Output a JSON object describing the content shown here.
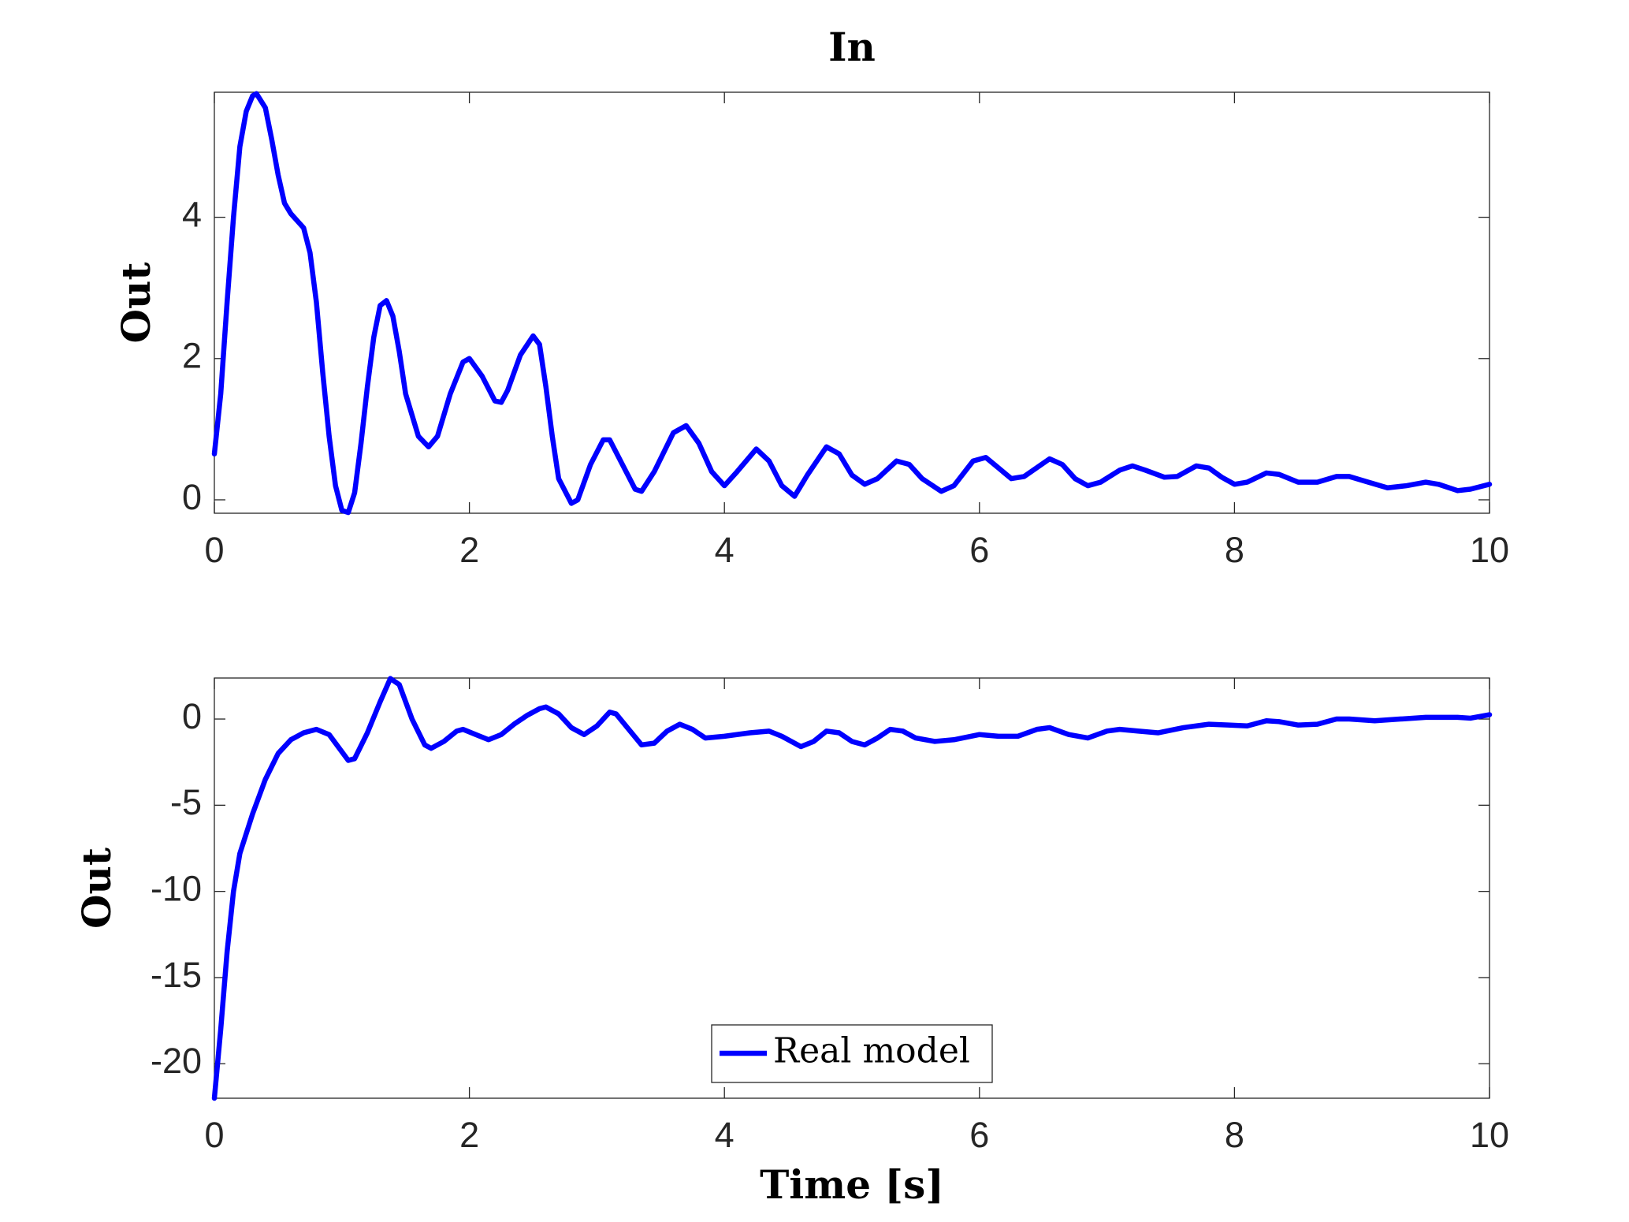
{
  "chart_data": [
    {
      "type": "line",
      "title": "In",
      "y_label": "Out",
      "x": [
        0,
        0.05,
        0.1,
        0.15,
        0.2,
        0.25,
        0.3,
        0.33,
        0.4,
        0.45,
        0.5,
        0.55,
        0.6,
        0.7,
        0.75,
        0.8,
        0.85,
        0.9,
        0.95,
        1.0,
        1.05,
        1.1,
        1.15,
        1.2,
        1.25,
        1.3,
        1.35,
        1.4,
        1.45,
        1.5,
        1.6,
        1.68,
        1.75,
        1.85,
        1.95,
        2.0,
        2.1,
        2.2,
        2.25,
        2.3,
        2.4,
        2.5,
        2.55,
        2.6,
        2.65,
        2.7,
        2.8,
        2.85,
        2.95,
        3.05,
        3.1,
        3.2,
        3.3,
        3.35,
        3.45,
        3.6,
        3.7,
        3.8,
        3.9,
        4.0,
        4.1,
        4.25,
        4.35,
        4.45,
        4.55,
        4.65,
        4.8,
        4.9,
        5.0,
        5.1,
        5.2,
        5.35,
        5.45,
        5.55,
        5.7,
        5.8,
        5.95,
        6.05,
        6.15,
        6.25,
        6.35,
        6.55,
        6.65,
        6.75,
        6.85,
        6.95,
        7.1,
        7.2,
        7.3,
        7.45,
        7.55,
        7.7,
        7.8,
        7.9,
        8.0,
        8.1,
        8.25,
        8.35,
        8.5,
        8.65,
        8.8,
        8.9,
        9.05,
        9.2,
        9.35,
        9.5,
        9.6,
        9.75,
        9.85,
        10
      ],
      "series": [
        {
          "color": "#0000ff",
          "values": [
            0.65,
            1.5,
            2.8,
            4.0,
            5.0,
            5.5,
            5.72,
            5.75,
            5.55,
            5.1,
            4.6,
            4.2,
            4.05,
            3.85,
            3.5,
            2.8,
            1.8,
            0.9,
            0.2,
            -0.15,
            -0.18,
            0.1,
            0.8,
            1.6,
            2.3,
            2.75,
            2.82,
            2.6,
            2.1,
            1.5,
            0.9,
            0.75,
            0.9,
            1.5,
            1.95,
            2.0,
            1.75,
            1.4,
            1.38,
            1.55,
            2.05,
            2.32,
            2.2,
            1.6,
            0.9,
            0.3,
            -0.05,
            0.0,
            0.5,
            0.85,
            0.85,
            0.5,
            0.15,
            0.12,
            0.4,
            0.95,
            1.05,
            0.8,
            0.4,
            0.2,
            0.4,
            0.72,
            0.55,
            0.2,
            0.05,
            0.35,
            0.75,
            0.65,
            0.35,
            0.22,
            0.3,
            0.55,
            0.5,
            0.3,
            0.12,
            0.2,
            0.55,
            0.6,
            0.45,
            0.3,
            0.33,
            0.58,
            0.5,
            0.3,
            0.2,
            0.25,
            0.42,
            0.48,
            0.42,
            0.32,
            0.33,
            0.48,
            0.45,
            0.32,
            0.22,
            0.25,
            0.38,
            0.36,
            0.25,
            0.25,
            0.33,
            0.33,
            0.25,
            0.17,
            0.2,
            0.25,
            0.22,
            0.13,
            0.15,
            0.22
          ]
        }
      ],
      "xlim": [
        0,
        10
      ],
      "xticks": [
        0,
        2,
        4,
        6,
        8,
        10
      ],
      "ylim": [
        -0.19,
        5.77
      ],
      "yticks": [
        0,
        2,
        4
      ],
      "grid": false
    },
    {
      "type": "line",
      "y_label": "Out",
      "x_label": "Time [s]",
      "x": [
        0,
        0.05,
        0.1,
        0.15,
        0.2,
        0.3,
        0.4,
        0.5,
        0.6,
        0.7,
        0.8,
        0.9,
        1.0,
        1.05,
        1.1,
        1.2,
        1.3,
        1.38,
        1.45,
        1.55,
        1.65,
        1.7,
        1.8,
        1.9,
        1.95,
        2.05,
        2.15,
        2.25,
        2.35,
        2.45,
        2.55,
        2.6,
        2.7,
        2.8,
        2.9,
        3.0,
        3.1,
        3.15,
        3.25,
        3.35,
        3.45,
        3.55,
        3.65,
        3.75,
        3.85,
        4.0,
        4.2,
        4.35,
        4.45,
        4.6,
        4.7,
        4.8,
        4.9,
        5.0,
        5.1,
        5.2,
        5.3,
        5.4,
        5.5,
        5.65,
        5.8,
        6.0,
        6.15,
        6.3,
        6.45,
        6.55,
        6.7,
        6.85,
        7.0,
        7.1,
        7.25,
        7.4,
        7.6,
        7.8,
        7.95,
        8.1,
        8.25,
        8.35,
        8.5,
        8.65,
        8.8,
        8.9,
        9.1,
        9.3,
        9.5,
        9.75,
        9.85,
        10
      ],
      "series": [
        {
          "name": "Real model",
          "color": "#0000ff",
          "values": [
            -22,
            -18,
            -13.5,
            -10,
            -7.8,
            -5.5,
            -3.5,
            -2,
            -1.2,
            -0.8,
            -0.6,
            -0.9,
            -1.9,
            -2.4,
            -2.3,
            -0.8,
            1.0,
            2.35,
            2.0,
            0.0,
            -1.5,
            -1.7,
            -1.3,
            -0.7,
            -0.6,
            -0.9,
            -1.2,
            -0.9,
            -0.3,
            0.2,
            0.6,
            0.7,
            0.3,
            -0.5,
            -0.9,
            -0.4,
            0.4,
            0.3,
            -0.6,
            -1.5,
            -1.4,
            -0.7,
            -0.3,
            -0.6,
            -1.1,
            -1.0,
            -0.8,
            -0.7,
            -1.0,
            -1.6,
            -1.3,
            -0.7,
            -0.8,
            -1.3,
            -1.5,
            -1.1,
            -0.6,
            -0.7,
            -1.1,
            -1.3,
            -1.2,
            -0.9,
            -1.0,
            -1.0,
            -0.6,
            -0.5,
            -0.9,
            -1.1,
            -0.7,
            -0.6,
            -0.7,
            -0.8,
            -0.5,
            -0.3,
            -0.35,
            -0.4,
            -0.1,
            -0.15,
            -0.35,
            -0.3,
            0.0,
            0.0,
            -0.1,
            0.0,
            0.1,
            0.1,
            0.05,
            0.25
          ]
        }
      ],
      "xlim": [
        0,
        10
      ],
      "xticks": [
        0,
        2,
        4,
        6,
        8,
        10
      ],
      "ylim": [
        -22,
        2.38
      ],
      "yticks": [
        -20,
        -15,
        -10,
        -5,
        0
      ],
      "grid": false,
      "legend": "bottom"
    }
  ]
}
